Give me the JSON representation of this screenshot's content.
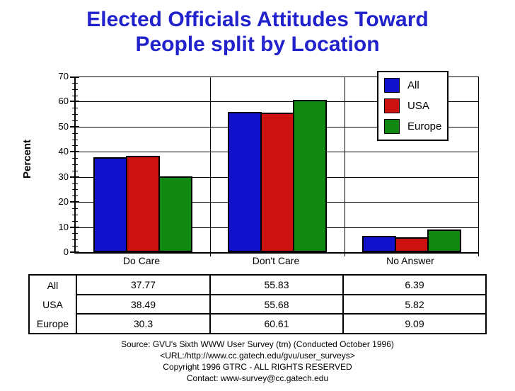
{
  "title": {
    "line1": "Elected Officials Attitudes Toward",
    "line2": "People split by Location",
    "color": "#2222CC"
  },
  "chart_data": {
    "type": "bar",
    "title": "Elected Officials Attitudes Toward People split by Location",
    "categories": [
      "Do Care",
      "Don't Care",
      "No Answer"
    ],
    "series": [
      {
        "name": "All",
        "color": "#1111CC",
        "values": [
          37.77,
          55.83,
          6.39
        ]
      },
      {
        "name": "USA",
        "color": "#CC1111",
        "values": [
          38.49,
          55.68,
          5.82
        ]
      },
      {
        "name": "Europe",
        "color": "#118811",
        "values": [
          30.3,
          60.61,
          9.09
        ]
      }
    ],
    "xlabel": "",
    "ylabel": "Percent",
    "ylim": [
      0,
      70
    ],
    "ytick_step": 10,
    "minor_tick_step": 2.5,
    "grid": true,
    "legend_position": "top-right"
  },
  "table": {
    "row_labels": [
      "All",
      "USA",
      "Europe"
    ],
    "columns": [
      "Do Care",
      "Don't Care",
      "No Answer"
    ],
    "rows": [
      [
        "37.77",
        "55.83",
        "6.39"
      ],
      [
        "38.49",
        "55.68",
        "5.82"
      ],
      [
        "30.3",
        "60.61",
        "9.09"
      ]
    ]
  },
  "footer": {
    "lines": [
      "Source: GVU's Sixth WWW User Survey (tm) (Conducted October 1996)",
      "<URL:/http://www.cc.gatech.edu/gvu/user_surveys>",
      "Copyright 1996 GTRC - ALL RIGHTS RESERVED",
      "Contact: www-survey@cc.gatech.edu"
    ]
  }
}
